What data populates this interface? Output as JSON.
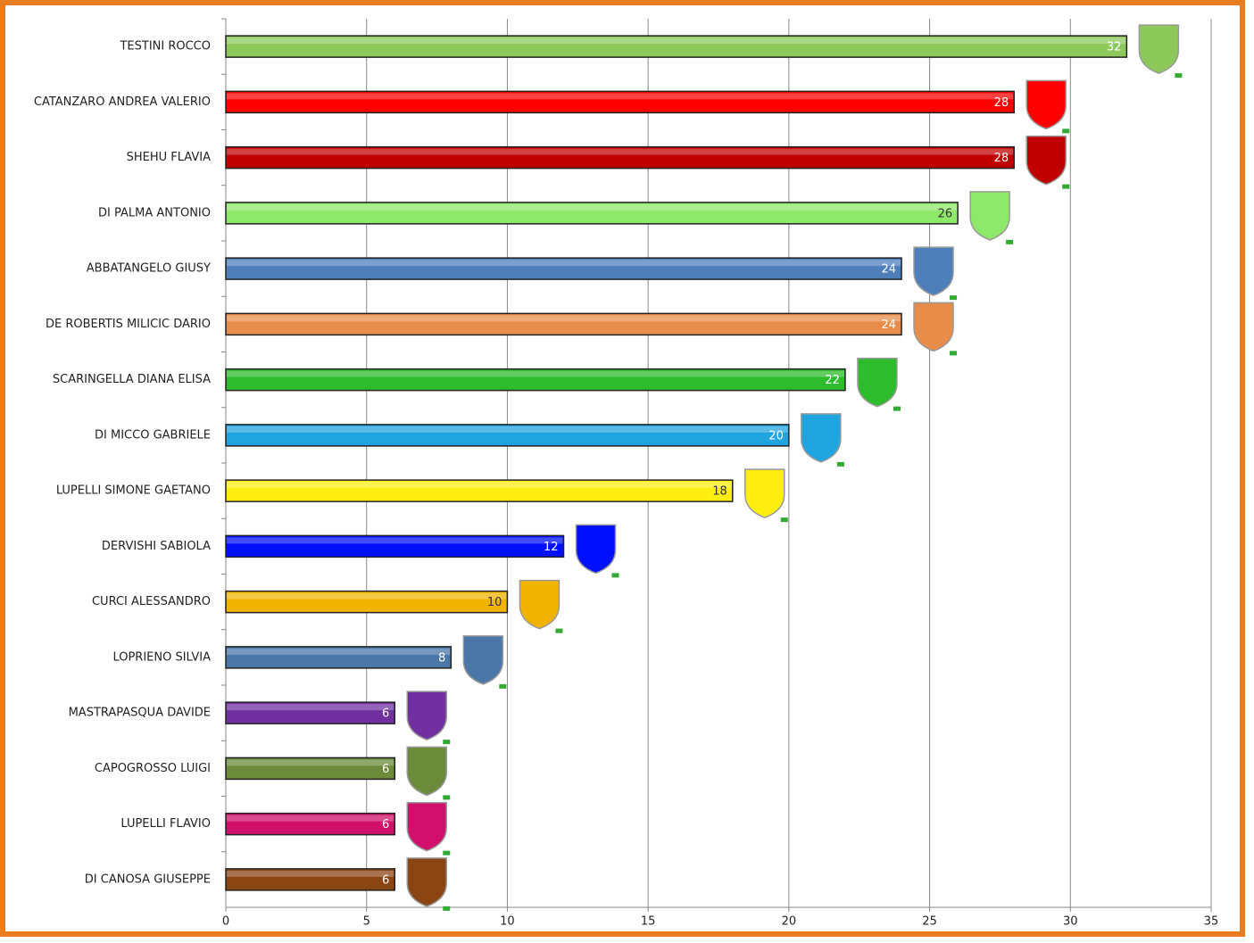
{
  "chart_data": {
    "type": "bar",
    "orientation": "horizontal",
    "categories": [
      "TESTINI ROCCO",
      "CATANZARO ANDREA VALERIO",
      "SHEHU FLAVIA",
      "DI PALMA ANTONIO",
      "ABBATANGELO GIUSY",
      "DE ROBERTIS MILICIC DARIO",
      "SCARINGELLA DIANA ELISA",
      "DI MICCO GABRIELE",
      "LUPELLI SIMONE GAETANO",
      "DERVISHI SABIOLA",
      "CURCI ALESSANDRO",
      "LOPRIENO SILVIA",
      "MASTRAPASQUA DAVIDE",
      "CAPOGROSSO LUIGI",
      "LUPELLI FLAVIO",
      "DI CANOSA GIUSEPPE"
    ],
    "values": [
      32,
      28,
      28,
      26,
      24,
      24,
      22,
      20,
      18,
      12,
      10,
      8,
      6,
      6,
      6,
      6
    ],
    "colors": [
      "#8cc85a",
      "#ff0000",
      "#c00000",
      "#8ee86a",
      "#4f7fbb",
      "#e88c4a",
      "#2cbc2c",
      "#20a4e0",
      "#ffee10",
      "#0010ff",
      "#f0b400",
      "#4a76a8",
      "#7030a0",
      "#6b8a3a",
      "#d0106a",
      "#8b4513"
    ],
    "xlim": [
      0,
      35
    ],
    "xticks": [
      0,
      5,
      10,
      15,
      20,
      25,
      30,
      35
    ],
    "grid": true
  }
}
